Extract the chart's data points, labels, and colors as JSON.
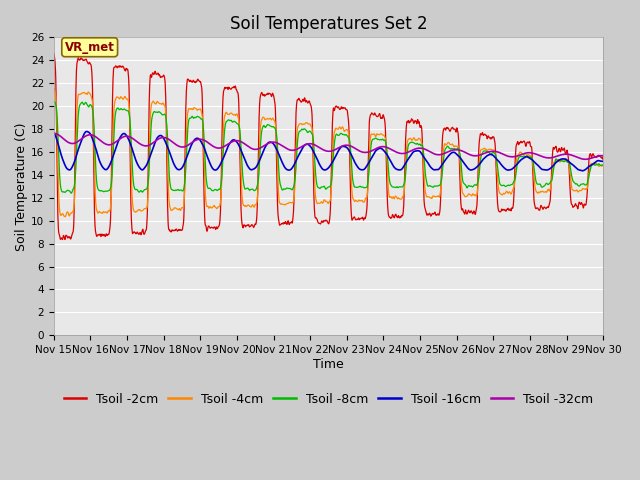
{
  "title": "Soil Temperatures Set 2",
  "xlabel": "Time",
  "ylabel": "Soil Temperature (C)",
  "ylim": [
    0,
    26
  ],
  "yticks": [
    0,
    2,
    4,
    6,
    8,
    10,
    12,
    14,
    16,
    18,
    20,
    22,
    24,
    26
  ],
  "xtick_labels": [
    "Nov 15",
    "Nov 16",
    "Nov 17",
    "Nov 18",
    "Nov 19",
    "Nov 20",
    "Nov 21",
    "Nov 22",
    "Nov 23",
    "Nov 24",
    "Nov 25",
    "Nov 26",
    "Nov 27",
    "Nov 28",
    "Nov 29",
    "Nov 30"
  ],
  "series_colors": [
    "#dd0000",
    "#ff8800",
    "#00bb00",
    "#0000cc",
    "#aa00aa"
  ],
  "series_labels": [
    "Tsoil -2cm",
    "Tsoil -4cm",
    "Tsoil -8cm",
    "Tsoil -16cm",
    "Tsoil -32cm"
  ],
  "background_color": "#cccccc",
  "plot_bg_color": "#e8e8e8",
  "annotation_text": "VR_met",
  "annotation_bg": "#ffff99",
  "annotation_border": "#886600",
  "title_fontsize": 12,
  "axis_label_fontsize": 9,
  "tick_fontsize": 7.5,
  "legend_fontsize": 9
}
